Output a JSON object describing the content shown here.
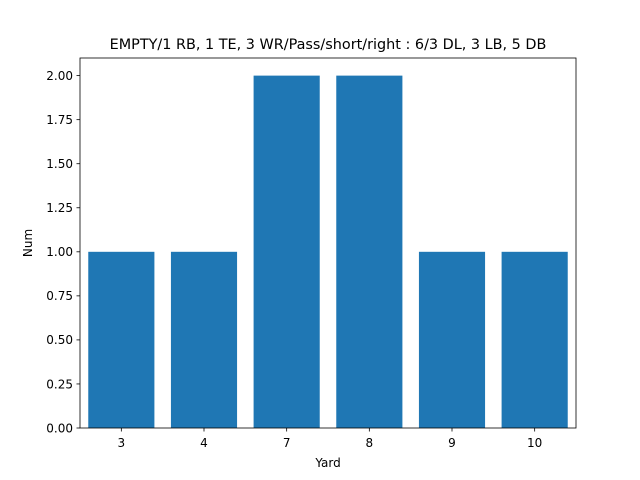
{
  "chart_data": {
    "type": "bar",
    "title": "EMPTY/1 RB, 1 TE, 3 WR/Pass/short/right : 6/3 DL, 3 LB, 5 DB",
    "xlabel": "Yard",
    "ylabel": "Num",
    "categories": [
      "3",
      "4",
      "7",
      "8",
      "9",
      "10"
    ],
    "values": [
      1,
      1,
      2,
      2,
      1,
      1
    ],
    "ylim": [
      0,
      2.1
    ],
    "yticks": [
      0.0,
      0.25,
      0.5,
      0.75,
      1.0,
      1.25,
      1.5,
      1.75,
      2.0
    ],
    "ytick_labels": [
      "0.00",
      "0.25",
      "0.50",
      "0.75",
      "1.00",
      "1.25",
      "1.50",
      "1.75",
      "2.00"
    ],
    "bar_color": "#1f77b4",
    "grid": false,
    "legend": false
  }
}
